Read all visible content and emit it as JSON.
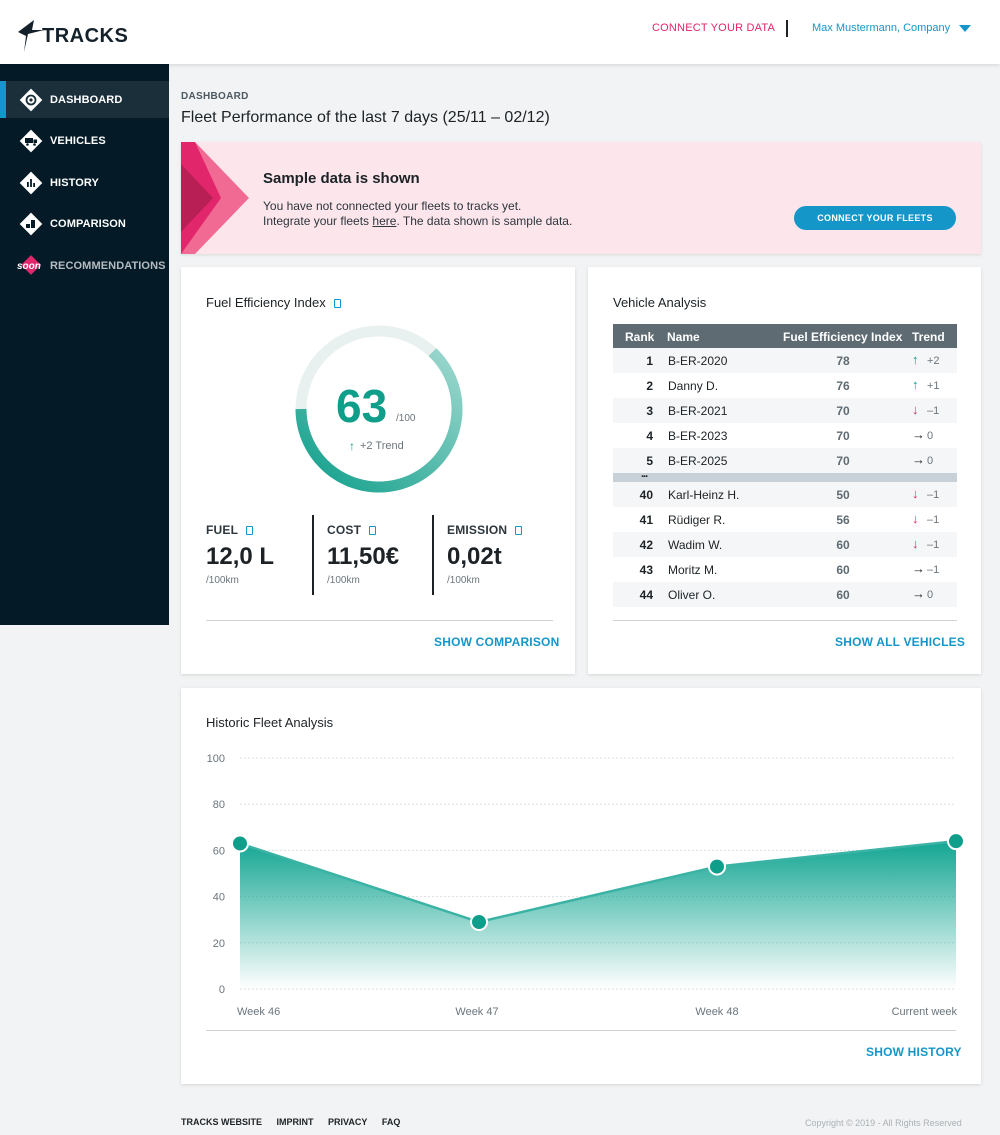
{
  "header": {
    "logo": "TRACKS",
    "connect_label": "CONNECT YOUR DATA",
    "user_label": "Max Mustermann, Company",
    "accent": "#1596c9",
    "pink": "#e2266b"
  },
  "sidebar": {
    "items": [
      {
        "label": "DASHBOARD",
        "icon": "dashboard-icon",
        "active": true
      },
      {
        "label": "VEHICLES",
        "icon": "truck-icon"
      },
      {
        "label": "HISTORY",
        "icon": "bar-chart-icon"
      },
      {
        "label": "COMPARISON",
        "icon": "comparison-icon"
      },
      {
        "label": "RECOMMENDATIONS",
        "icon": "soon-badge-icon",
        "badge": "soon",
        "disabled": true
      }
    ]
  },
  "page": {
    "breadcrumb": "DASHBOARD",
    "title": "Fleet Performance of the last 7 days (25/11 – 02/12)"
  },
  "banner": {
    "title": "Sample data is shown",
    "line1": "You have not connected your fleets to tracks yet.",
    "line2_pre": "Integrate your fleets ",
    "line2_link": "here",
    "line2_post": ". The data shown is sample data.",
    "button": "CONNECT YOUR FLEETS"
  },
  "fuel_card": {
    "title": "Fuel Efficiency Index",
    "index_value": "63",
    "index_unit": "/100",
    "index_fraction": 0.63,
    "trend_label": "+2 Trend",
    "metrics": [
      {
        "label": "FUEL",
        "value": "12,0 L",
        "unit": "/100km"
      },
      {
        "label": "COST",
        "value": "11,50€",
        "unit": "/100km"
      },
      {
        "label": "EMISSION",
        "value": "0,02t",
        "unit": "/100km"
      }
    ],
    "link": "SHOW COMPARISON"
  },
  "vehicle_card": {
    "title": "Vehicle Analysis",
    "columns": {
      "rank": "Rank",
      "name": "Name",
      "fei": "Fuel Efficiency Index",
      "trend": "Trend"
    },
    "top_rows": [
      {
        "rank": "1",
        "name": "B-ER-2020",
        "fei": "78",
        "dir": "up",
        "trend": "+2"
      },
      {
        "rank": "2",
        "name": "Danny D.",
        "fei": "76",
        "dir": "up",
        "trend": "+1"
      },
      {
        "rank": "3",
        "name": "B-ER-2021",
        "fei": "70",
        "dir": "down",
        "trend": "–1"
      },
      {
        "rank": "4",
        "name": "B-ER-2023",
        "fei": "70",
        "dir": "flat",
        "trend": "0"
      },
      {
        "rank": "5",
        "name": "B-ER-2025",
        "fei": "70",
        "dir": "flat",
        "trend": "0"
      }
    ],
    "gap_label": "...",
    "bottom_rows": [
      {
        "rank": "40",
        "name": "Karl-Heinz H.",
        "fei": "50",
        "dir": "down",
        "trend": "–1"
      },
      {
        "rank": "41",
        "name": "Rüdiger R.",
        "fei": "56",
        "dir": "down",
        "trend": "–1"
      },
      {
        "rank": "42",
        "name": "Wadim W.",
        "fei": "60",
        "dir": "down",
        "trend": "–1"
      },
      {
        "rank": "43",
        "name": "Moritz M.",
        "fei": "60",
        "dir": "flat",
        "trend": "–1"
      },
      {
        "rank": "44",
        "name": "Oliver O.",
        "fei": "60",
        "dir": "flat",
        "trend": "0"
      }
    ],
    "link": "SHOW ALL VEHICLES"
  },
  "history_card": {
    "title": "Historic Fleet Analysis",
    "link": "SHOW HISTORY"
  },
  "chart_data": {
    "type": "area",
    "categories": [
      "Week 46",
      "Week 47",
      "Week 48",
      "Current week"
    ],
    "values": [
      63,
      29,
      53,
      64
    ],
    "ylim": [
      0,
      100
    ],
    "yticks": [
      0,
      20,
      40,
      60,
      80,
      100
    ],
    "grid": true,
    "color": "#12a592"
  },
  "footer": {
    "links": [
      "TRACKS WEBSITE",
      "IMPRINT",
      "PRIVACY",
      "FAQ"
    ],
    "copyright": "Copyright © 2019 - All Rights Reserved"
  }
}
